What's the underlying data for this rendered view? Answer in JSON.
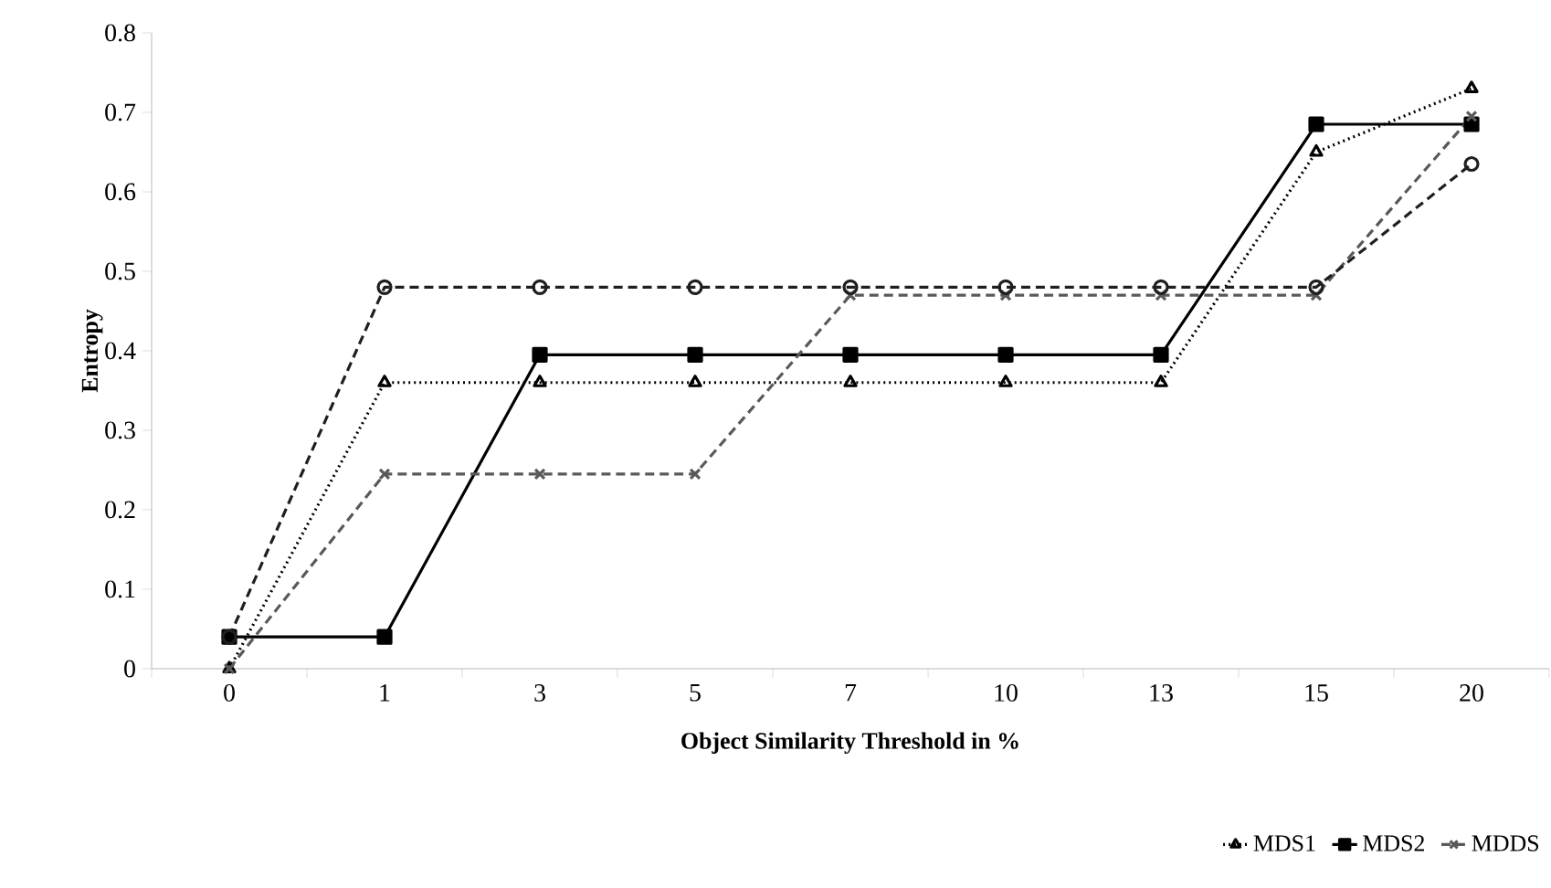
{
  "chart_data": {
    "type": "line",
    "xlabel": "Object Similarity Threshold in %",
    "ylabel": "Entropy",
    "categories": [
      "0",
      "1",
      "3",
      "5",
      "7",
      "10",
      "13",
      "15",
      "20"
    ],
    "ylim": [
      0,
      0.8
    ],
    "yticks": [
      0,
      0.1,
      0.2,
      0.3,
      0.4,
      0.5,
      0.6,
      0.7,
      0.8
    ],
    "legend": "bottom right",
    "grid": false,
    "series": [
      {
        "name": "MDS1",
        "color": "#000000",
        "marker": "triangle",
        "line_style": "dotted",
        "values": [
          0,
          0.36,
          0.36,
          0.36,
          0.36,
          0.36,
          0.36,
          0.65,
          0.73
        ]
      },
      {
        "name": "MDS2",
        "color": "#000000",
        "marker": "square",
        "line_style": "solid",
        "values": [
          0.04,
          0.04,
          0.395,
          0.395,
          0.395,
          0.395,
          0.395,
          0.685,
          0.685
        ]
      },
      {
        "name": "MDDS",
        "color": "#595959",
        "marker": "cross",
        "line_style": "dashed",
        "values": [
          0,
          0.245,
          0.245,
          0.245,
          0.47,
          0.47,
          0.47,
          0.47,
          0.695
        ]
      },
      {
        "color": "#1f1f1f",
        "marker": "circle",
        "line_style": "dashed",
        "values": [
          0.04,
          0.48,
          0.48,
          0.48,
          0.48,
          0.48,
          0.48,
          0.48,
          0.635
        ]
      }
    ]
  }
}
